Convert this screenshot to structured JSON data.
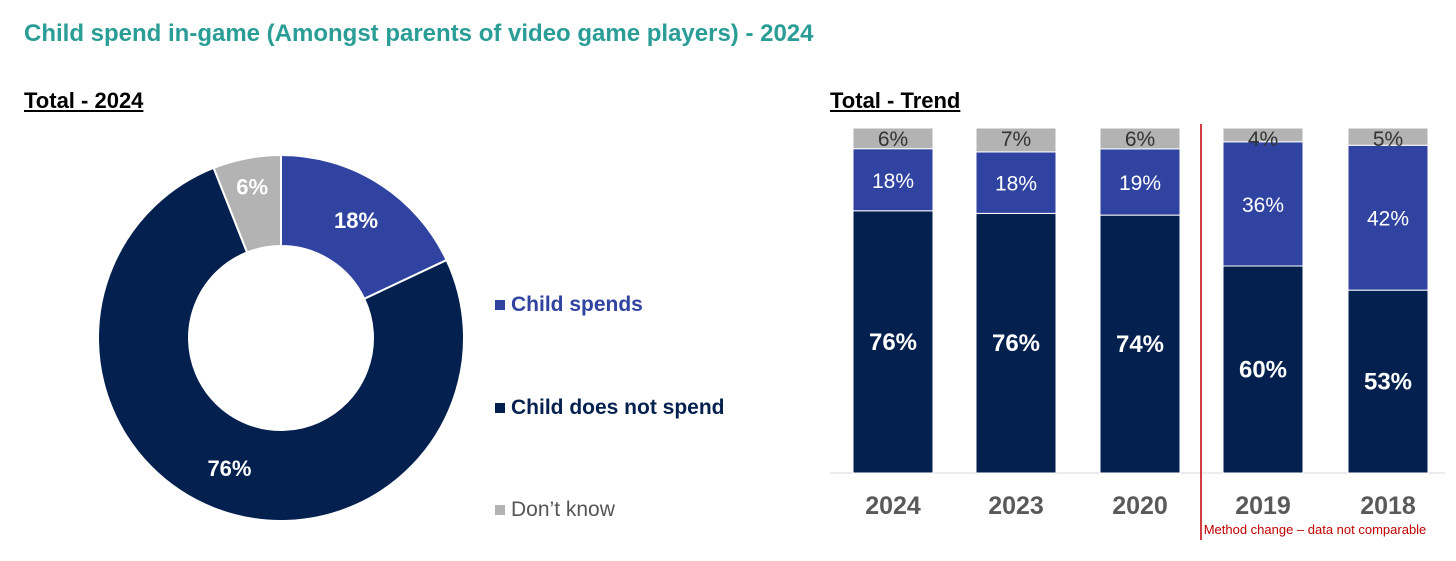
{
  "title": "Child spend in-game (Amongst parents of video game players) - 2024",
  "donut": {
    "heading": "Total - 2024"
  },
  "trend": {
    "heading": "Total - Trend",
    "note": "Method change – data not comparable"
  },
  "legend": [
    {
      "label": "Child spends",
      "color": "#3043a0",
      "bold": true
    },
    {
      "label": "Child does not spend",
      "color": "#04204f",
      "bold": true
    },
    {
      "label": "Don’t know",
      "color": "#b3b3b3",
      "bold": false
    }
  ],
  "chart_data": [
    {
      "type": "pie",
      "title": "Total - 2024",
      "donut": true,
      "slices": [
        {
          "label": "Child spends",
          "value": 18,
          "display": "18%",
          "color": "#3043a0"
        },
        {
          "label": "Child does not spend",
          "value": 76,
          "display": "76%",
          "color": "#04204f"
        },
        {
          "label": "Don’t know",
          "value": 6,
          "display": "6%",
          "color": "#b3b3b3"
        }
      ]
    },
    {
      "type": "bar",
      "stacked": true,
      "title": "Total - Trend",
      "categories": [
        "2024",
        "2023",
        "2020",
        "2019",
        "2018"
      ],
      "series": [
        {
          "name": "Child does not spend",
          "values": [
            76,
            76,
            74,
            60,
            53
          ],
          "color": "#04204f"
        },
        {
          "name": "Child spends",
          "values": [
            18,
            18,
            19,
            36,
            42
          ],
          "color": "#3043a0"
        },
        {
          "name": "Don’t know",
          "values": [
            6,
            7,
            6,
            4,
            5
          ],
          "color": "#b3b3b3"
        }
      ],
      "ylim": [
        0,
        100
      ],
      "annotation": "Method change – data not comparable"
    }
  ]
}
